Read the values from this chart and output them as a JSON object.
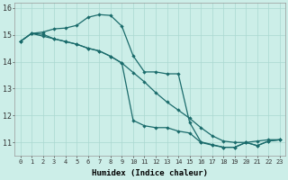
{
  "xlabel": "Humidex (Indice chaleur)",
  "bg_color": "#cceee8",
  "line_color": "#1a6b6b",
  "grid_color": "#aad8d0",
  "xlim": [
    -0.5,
    23.5
  ],
  "ylim": [
    10.5,
    16.2
  ],
  "xticks": [
    0,
    1,
    2,
    3,
    4,
    5,
    6,
    7,
    8,
    9,
    10,
    11,
    12,
    13,
    14,
    15,
    16,
    17,
    18,
    19,
    20,
    21,
    22,
    23
  ],
  "yticks": [
    11,
    12,
    13,
    14,
    15,
    16
  ],
  "line1_x": [
    0,
    1,
    2,
    3,
    4,
    5,
    6,
    7,
    8,
    9,
    10,
    11,
    12,
    13,
    14,
    15,
    16,
    17,
    18,
    19,
    20,
    21,
    22,
    23
  ],
  "line1_y": [
    14.75,
    15.05,
    15.02,
    14.85,
    14.75,
    14.65,
    14.5,
    14.4,
    14.2,
    13.95,
    13.6,
    13.25,
    12.85,
    12.5,
    12.2,
    11.9,
    11.55,
    11.25,
    11.05,
    11.0,
    11.0,
    11.05,
    11.1,
    11.1
  ],
  "line2_x": [
    0,
    1,
    2,
    3,
    4,
    5,
    6,
    7,
    8,
    9,
    10,
    11,
    12,
    13,
    14,
    15,
    16,
    17,
    18,
    19,
    20,
    21,
    22,
    23
  ],
  "line2_y": [
    14.75,
    15.05,
    15.1,
    15.22,
    15.25,
    15.35,
    15.65,
    15.75,
    15.72,
    15.32,
    14.22,
    13.62,
    13.62,
    13.55,
    13.55,
    11.75,
    11.02,
    10.92,
    10.82,
    10.82,
    11.0,
    10.88,
    11.05,
    11.1
  ],
  "line3_x": [
    0,
    1,
    2,
    3,
    4,
    5,
    6,
    7,
    8,
    9,
    10,
    11,
    12,
    13,
    14,
    15,
    16,
    17,
    18,
    19,
    20,
    21,
    22,
    23
  ],
  "line3_y": [
    14.75,
    15.05,
    14.95,
    14.85,
    14.75,
    14.65,
    14.5,
    14.4,
    14.2,
    13.95,
    11.82,
    11.62,
    11.55,
    11.55,
    11.42,
    11.35,
    11.0,
    10.9,
    10.82,
    10.82,
    11.0,
    10.88,
    11.05,
    11.1
  ]
}
